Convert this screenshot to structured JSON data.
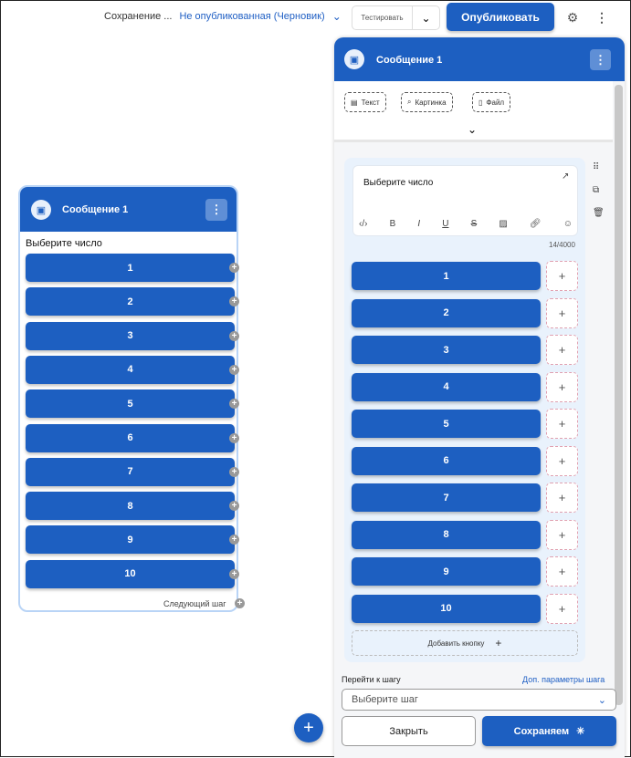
{
  "topbar": {
    "saving_status": "Сохранение ...",
    "version_status": "Не опубликованная (Черновик)",
    "test_label": "Тестировать",
    "publish_label": "Опубликовать"
  },
  "node_card": {
    "title": "Сообщение 1",
    "message": "Выберите число",
    "buttons": [
      "1",
      "2",
      "3",
      "4",
      "5",
      "6",
      "7",
      "8",
      "9",
      "10"
    ],
    "next_step": "Следующий шаг"
  },
  "editor": {
    "title": "Сообщение 1",
    "chips": [
      "Текст",
      "Картинка",
      "Файл"
    ],
    "message_text": "Выберите число",
    "char_counter": "14/4000",
    "buttons": [
      "1",
      "2",
      "3",
      "4",
      "5",
      "6",
      "7",
      "8",
      "9",
      "10"
    ],
    "add_button_label": "Добавить кнопку",
    "goto_label": "Перейти к шагу",
    "extra_params_link": "Доп. параметры шага",
    "step_select_placeholder": "Выберите шаг",
    "close_label": "Закрыть",
    "save_label": "Сохраняем"
  },
  "colors": {
    "primary": "#1d5fc1",
    "link": "#1f5fc4"
  }
}
